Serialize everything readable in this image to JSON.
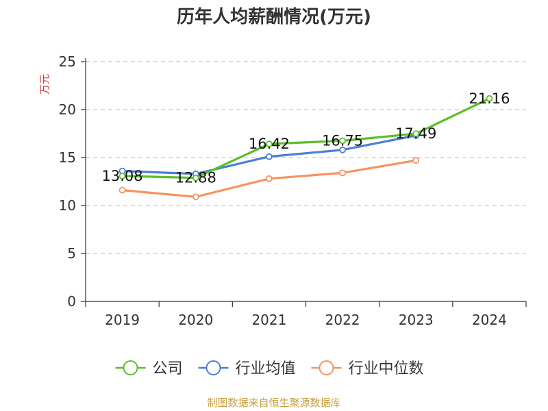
{
  "chart_data": {
    "type": "line",
    "title": "历年人均薪酬情况(万元)",
    "ylabel": "万元",
    "xlabel": "",
    "categories": [
      "2019",
      "2020",
      "2021",
      "2022",
      "2023",
      "2024"
    ],
    "ylim": [
      0,
      25
    ],
    "yticks": [
      0,
      5,
      10,
      15,
      20,
      25
    ],
    "grid": true,
    "legend_position": "bottom",
    "series": [
      {
        "name": "公司",
        "color": "#5cbf2a",
        "values": [
          13.08,
          12.88,
          16.42,
          16.75,
          17.49,
          21.16
        ],
        "show_labels": true
      },
      {
        "name": "行业均值",
        "color": "#4a7fd6",
        "values": [
          13.6,
          13.3,
          15.1,
          15.8,
          17.3,
          null
        ],
        "show_labels": false
      },
      {
        "name": "行业中位数",
        "color": "#f59461",
        "values": [
          11.6,
          10.9,
          12.8,
          13.4,
          14.7,
          null
        ],
        "show_labels": false
      }
    ]
  },
  "footer": {
    "source": "制图数据来自恒生聚源数据库"
  }
}
